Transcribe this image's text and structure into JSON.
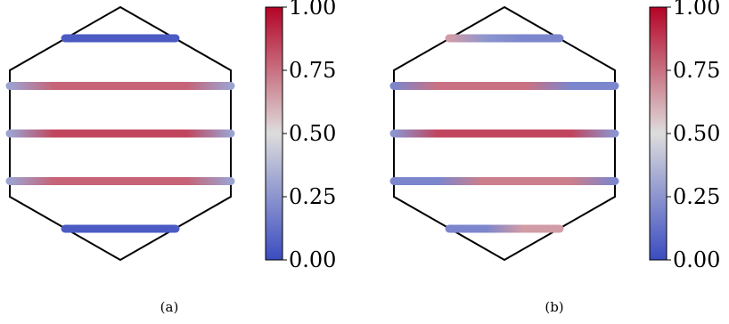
{
  "colors": {
    "cmap_low": "#3b4cc0",
    "cmap_mid": "#dddddd",
    "cmap_high": "#b40426",
    "hexagon_stroke": "#000000"
  },
  "chart_data": [
    {
      "type": "heatmap",
      "caption": "(a)",
      "colorbar": {
        "ticks": [
          "0.00",
          "0.25",
          "0.50",
          "0.75",
          "1.00"
        ],
        "range": [
          0,
          1
        ],
        "colormap": "coolwarm"
      },
      "shape": "hexagon",
      "rows": [
        {
          "row": 1,
          "x": [
            -0.5,
            0.5
          ],
          "values": [
            0.05,
            0.05,
            0.05,
            0.05
          ]
        },
        {
          "row": 2,
          "x": [
            -1.0,
            1.0
          ],
          "values": [
            0.3,
            0.78,
            0.78,
            0.78,
            0.78,
            0.3
          ]
        },
        {
          "row": 3,
          "x": [
            -1.0,
            1.0
          ],
          "values": [
            0.3,
            0.85,
            0.85,
            0.85,
            0.85,
            0.3
          ]
        },
        {
          "row": 4,
          "x": [
            -1.0,
            1.0
          ],
          "values": [
            0.3,
            0.78,
            0.78,
            0.78,
            0.78,
            0.3
          ]
        },
        {
          "row": 5,
          "x": [
            -0.5,
            0.5
          ],
          "values": [
            0.05,
            0.05,
            0.05,
            0.05
          ]
        }
      ]
    },
    {
      "type": "heatmap",
      "caption": "(b)",
      "colorbar": {
        "ticks": [
          "0.00",
          "0.25",
          "0.50",
          "0.75",
          "1.00"
        ],
        "range": [
          0,
          1
        ],
        "colormap": "coolwarm"
      },
      "shape": "hexagon",
      "rows": [
        {
          "row": 1,
          "x": [
            -0.5,
            0.5
          ],
          "values": [
            0.65,
            0.25,
            0.2,
            0.2
          ]
        },
        {
          "row": 2,
          "x": [
            -1.0,
            1.0
          ],
          "values": [
            0.2,
            0.75,
            0.75,
            0.75,
            0.2,
            0.2
          ]
        },
        {
          "row": 3,
          "x": [
            -1.0,
            1.0
          ],
          "values": [
            0.25,
            0.85,
            0.85,
            0.85,
            0.85,
            0.25
          ]
        },
        {
          "row": 4,
          "x": [
            -1.0,
            1.0
          ],
          "values": [
            0.2,
            0.2,
            0.72,
            0.72,
            0.72,
            0.2
          ]
        },
        {
          "row": 5,
          "x": [
            -0.5,
            0.5
          ],
          "values": [
            0.2,
            0.2,
            0.65,
            0.65
          ]
        }
      ]
    }
  ]
}
